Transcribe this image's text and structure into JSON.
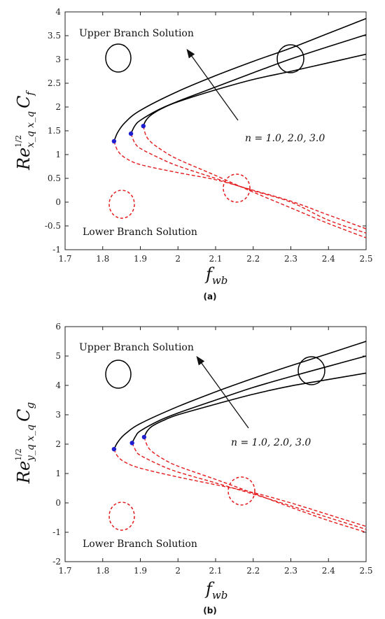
{
  "chart_data": [
    {
      "type": "line",
      "panel_label": "(a)",
      "xlabel": {
        "main": "f",
        "sub": "wb"
      },
      "ylabel": {
        "main": "Re",
        "sup": "1/2",
        "sub": "x_q x_q",
        "tail": "C",
        "tail_sub": "f"
      },
      "xlim": [
        1.7,
        2.5
      ],
      "ylim": [
        -1,
        4
      ],
      "xticks": [
        "1.7",
        "1.8",
        "1.9",
        "2",
        "2.1",
        "2.2",
        "2.3",
        "2.4",
        "2.5"
      ],
      "yticks": [
        "-1",
        "-0.5",
        "0",
        "0.5",
        "1",
        "1.5",
        "2",
        "2.5",
        "3",
        "3.5",
        "4"
      ],
      "grid": false,
      "annotations": {
        "upper": "Upper Branch Solution",
        "lower": "Lower Branch Solution",
        "n_values": "n = 1.0, 2.0, 3.0"
      },
      "upper_color": "#000000",
      "lower_color": "#e41a1c",
      "marker_color": "#1f1fd0",
      "series": [
        {
          "critical": [
            1.83,
            1.28
          ],
          "upper": [
            [
              1.83,
              1.28
            ],
            [
              1.84,
              1.47
            ],
            [
              1.86,
              1.68
            ],
            [
              1.9,
              1.93
            ],
            [
              2.0,
              2.33
            ],
            [
              2.1,
              2.66
            ],
            [
              2.2,
              2.96
            ],
            [
              2.3,
              3.24
            ],
            [
              2.4,
              3.55
            ],
            [
              2.5,
              3.86
            ]
          ],
          "lower": [
            [
              1.83,
              1.28
            ],
            [
              1.84,
              1.08
            ],
            [
              1.86,
              0.93
            ],
            [
              1.9,
              0.79
            ],
            [
              2.0,
              0.62
            ],
            [
              2.1,
              0.47
            ],
            [
              2.2,
              0.25
            ],
            [
              2.3,
              0.02
            ],
            [
              2.4,
              -0.27
            ],
            [
              2.5,
              -0.56
            ]
          ]
        },
        {
          "critical": [
            1.875,
            1.44
          ],
          "upper": [
            [
              1.875,
              1.44
            ],
            [
              1.885,
              1.6
            ],
            [
              1.9,
              1.72
            ],
            [
              1.95,
              1.95
            ],
            [
              2.0,
              2.12
            ],
            [
              2.1,
              2.42
            ],
            [
              2.2,
              2.72
            ],
            [
              2.3,
              3.01
            ],
            [
              2.4,
              3.27
            ],
            [
              2.5,
              3.52
            ]
          ],
          "lower": [
            [
              1.875,
              1.44
            ],
            [
              1.885,
              1.25
            ],
            [
              1.9,
              1.13
            ],
            [
              1.95,
              0.93
            ],
            [
              2.0,
              0.76
            ],
            [
              2.1,
              0.5
            ],
            [
              2.2,
              0.24
            ],
            [
              2.3,
              0.0
            ],
            [
              2.4,
              -0.38
            ],
            [
              2.5,
              -0.65
            ]
          ]
        },
        {
          "critical": [
            1.908,
            1.6
          ],
          "upper": [
            [
              1.908,
              1.6
            ],
            [
              1.915,
              1.72
            ],
            [
              1.93,
              1.84
            ],
            [
              1.96,
              1.98
            ],
            [
              2.0,
              2.11
            ],
            [
              2.1,
              2.36
            ],
            [
              2.2,
              2.58
            ],
            [
              2.3,
              2.75
            ],
            [
              2.4,
              2.93
            ],
            [
              2.5,
              3.11
            ]
          ],
          "lower": [
            [
              1.908,
              1.6
            ],
            [
              1.915,
              1.4
            ],
            [
              1.93,
              1.25
            ],
            [
              1.96,
              1.08
            ],
            [
              2.0,
              0.9
            ],
            [
              2.1,
              0.56
            ],
            [
              2.2,
              0.21
            ],
            [
              2.3,
              -0.12
            ],
            [
              2.4,
              -0.45
            ],
            [
              2.5,
              -0.75
            ]
          ]
        }
      ]
    },
    {
      "type": "line",
      "panel_label": "(b)",
      "xlabel": {
        "main": "f",
        "sub": "wb"
      },
      "ylabel": {
        "main": "Re",
        "sup": "1/2",
        "sub": "y_q x_q",
        "tail": "C",
        "tail_sub": "g"
      },
      "xlim": [
        1.7,
        2.5
      ],
      "ylim": [
        -2,
        6
      ],
      "xticks": [
        "1.7",
        "1.8",
        "1.9",
        "2",
        "2.1",
        "2.2",
        "2.3",
        "2.4",
        "2.5"
      ],
      "yticks": [
        "-2",
        "-1",
        "0",
        "1",
        "2",
        "3",
        "4",
        "5",
        "6"
      ],
      "grid": false,
      "annotations": {
        "upper": "Upper Branch Solution",
        "lower": "Lower Branch Solution",
        "n_values": "n = 1.0, 2.0, 3.0"
      },
      "upper_color": "#000000",
      "lower_color": "#e41a1c",
      "marker_color": "#1f1fd0",
      "series": [
        {
          "critical": [
            1.83,
            1.83
          ],
          "upper": [
            [
              1.83,
              1.83
            ],
            [
              1.84,
              2.07
            ],
            [
              1.86,
              2.35
            ],
            [
              1.9,
              2.7
            ],
            [
              2.0,
              3.28
            ],
            [
              2.1,
              3.78
            ],
            [
              2.2,
              4.24
            ],
            [
              2.3,
              4.67
            ],
            [
              2.4,
              5.08
            ],
            [
              2.5,
              5.5
            ]
          ],
          "lower": [
            [
              1.83,
              1.83
            ],
            [
              1.84,
              1.58
            ],
            [
              1.86,
              1.38
            ],
            [
              1.9,
              1.18
            ],
            [
              2.0,
              0.88
            ],
            [
              2.1,
              0.62
            ],
            [
              2.2,
              0.35
            ],
            [
              2.3,
              0.0
            ],
            [
              2.4,
              -0.4
            ],
            [
              2.5,
              -0.8
            ]
          ]
        },
        {
          "critical": [
            1.878,
            2.04
          ],
          "upper": [
            [
              1.878,
              2.04
            ],
            [
              1.888,
              2.28
            ],
            [
              1.9,
              2.45
            ],
            [
              1.95,
              2.8
            ],
            [
              2.0,
              3.06
            ],
            [
              2.1,
              3.5
            ],
            [
              2.2,
              3.93
            ],
            [
              2.3,
              4.3
            ],
            [
              2.4,
              4.65
            ],
            [
              2.5,
              5.0
            ]
          ],
          "lower": [
            [
              1.878,
              2.04
            ],
            [
              1.888,
              1.78
            ],
            [
              1.9,
              1.62
            ],
            [
              1.95,
              1.3
            ],
            [
              2.0,
              1.05
            ],
            [
              2.1,
              0.68
            ],
            [
              2.2,
              0.3
            ],
            [
              2.3,
              -0.1
            ],
            [
              2.4,
              -0.5
            ],
            [
              2.5,
              -0.9
            ]
          ]
        },
        {
          "critical": [
            1.91,
            2.24
          ],
          "upper": [
            [
              1.91,
              2.24
            ],
            [
              1.918,
              2.44
            ],
            [
              1.93,
              2.6
            ],
            [
              1.96,
              2.8
            ],
            [
              2.0,
              3.0
            ],
            [
              2.1,
              3.36
            ],
            [
              2.2,
              3.7
            ],
            [
              2.3,
              3.98
            ],
            [
              2.4,
              4.2
            ],
            [
              2.5,
              4.42
            ]
          ],
          "lower": [
            [
              1.91,
              2.24
            ],
            [
              1.918,
              1.96
            ],
            [
              1.93,
              1.76
            ],
            [
              1.96,
              1.5
            ],
            [
              2.0,
              1.25
            ],
            [
              2.1,
              0.8
            ],
            [
              2.2,
              0.33
            ],
            [
              2.3,
              -0.15
            ],
            [
              2.4,
              -0.6
            ],
            [
              2.5,
              -1.0
            ]
          ]
        }
      ]
    }
  ]
}
